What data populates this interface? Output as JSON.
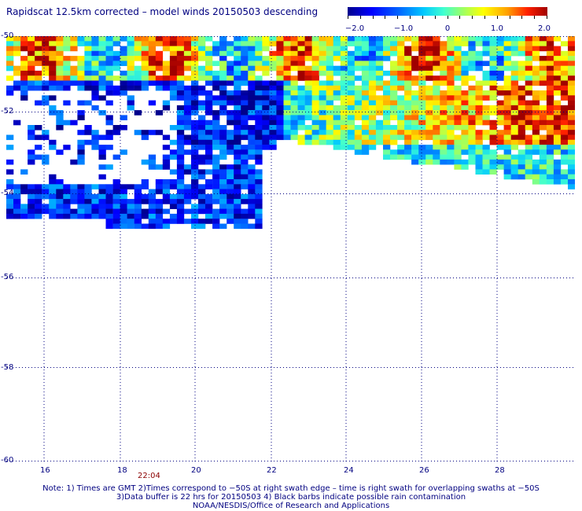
{
  "title": "Rapidscat 12.5km corrected – model winds 20150503 descending",
  "colorbar": {
    "labels": [
      "−2.0",
      "−1.0",
      "0",
      "1.0",
      "2.0"
    ],
    "min": -2.0,
    "max": 2.0
  },
  "map": {
    "lon_ticks": [
      "16",
      "18",
      "20",
      "22",
      "24",
      "26",
      "28"
    ],
    "lat_ticks": [
      "-50",
      "-52",
      "-54",
      "-56",
      "-58",
      "-60"
    ],
    "lon_range": [
      15.0,
      30.0
    ],
    "lat_range": [
      -60.0,
      -50.0
    ],
    "time_labels": [
      "22:04"
    ]
  },
  "chart_data": {
    "type": "heatmap",
    "title": "Rapidscat 12.5km corrected – model winds 20150503 descending",
    "xlabel": "",
    "ylabel": "",
    "x_range": [
      15,
      30
    ],
    "y_range": [
      -60,
      -50
    ],
    "value_range": [
      -2.0,
      2.0
    ],
    "grid": true
  },
  "notes": [
    "Note: 1) Times are GMT 2)Times correspond to −50S at right swath edge – time is right swath for overlapping swaths at −50S",
    "3)Data buffer is 22 hrs for 20150503 4) Black barbs indicate possible rain contamination",
    "NOAA/NESDIS/Office of Research and Applications"
  ]
}
